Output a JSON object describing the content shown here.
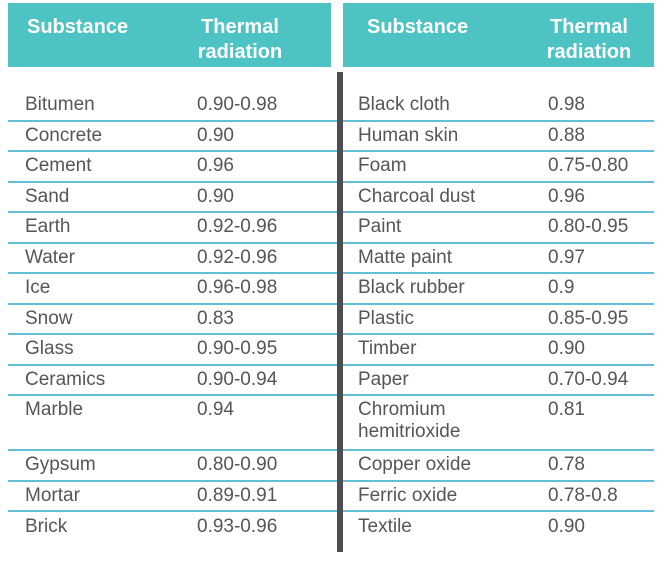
{
  "palette": {
    "header_bg": "#4ec3c3",
    "header_text": "#ffffff",
    "row_line": "#64bed6",
    "divider": "#4d4d4f",
    "body_text": "#55565a",
    "background": "#ffffff"
  },
  "tables": [
    {
      "headers": {
        "substance": "Substance",
        "value": "Thermal radiation"
      },
      "rows": [
        {
          "substance": "Bitumen",
          "value": "0.90-0.98"
        },
        {
          "substance": "Concrete",
          "value": "0.90"
        },
        {
          "substance": "Cement",
          "value": "0.96"
        },
        {
          "substance": "Sand",
          "value": "0.90"
        },
        {
          "substance": "Earth",
          "value": "0.92-0.96"
        },
        {
          "substance": "Water",
          "value": "0.92-0.96"
        },
        {
          "substance": "Ice",
          "value": "0.96-0.98"
        },
        {
          "substance": "Snow",
          "value": "0.83"
        },
        {
          "substance": "Glass",
          "value": "0.90-0.95"
        },
        {
          "substance": "Ceramics",
          "value": "0.90-0.94"
        },
        {
          "substance": "Marble",
          "value": "0.94",
          "tall": true
        },
        {
          "substance": "Gypsum",
          "value": "0.80-0.90"
        },
        {
          "substance": "Mortar",
          "value": "0.89-0.91"
        },
        {
          "substance": "Brick",
          "value": "0.93-0.96"
        }
      ]
    },
    {
      "headers": {
        "substance": "Substance",
        "value": "Thermal radiation"
      },
      "rows": [
        {
          "substance": "Black cloth",
          "value": "0.98"
        },
        {
          "substance": "Human skin",
          "value": "0.88"
        },
        {
          "substance": "Foam",
          "value": "0.75-0.80"
        },
        {
          "substance": "Charcoal dust",
          "value": "0.96"
        },
        {
          "substance": "Paint",
          "value": "0.80-0.95"
        },
        {
          "substance": "Matte paint",
          "value": "0.97"
        },
        {
          "substance": "Black rubber",
          "value": "0.9"
        },
        {
          "substance": "Plastic",
          "value": "0.85-0.95"
        },
        {
          "substance": "Timber",
          "value": "0.90"
        },
        {
          "substance": "Paper",
          "value": "0.70-0.94"
        },
        {
          "substance": "Chromium hemitrioxide",
          "value": "0.81",
          "tall": true
        },
        {
          "substance": "Copper oxide",
          "value": "0.78"
        },
        {
          "substance": "Ferric oxide",
          "value": "0.78-0.8"
        },
        {
          "substance": "Textile",
          "value": "0.90"
        }
      ]
    }
  ]
}
